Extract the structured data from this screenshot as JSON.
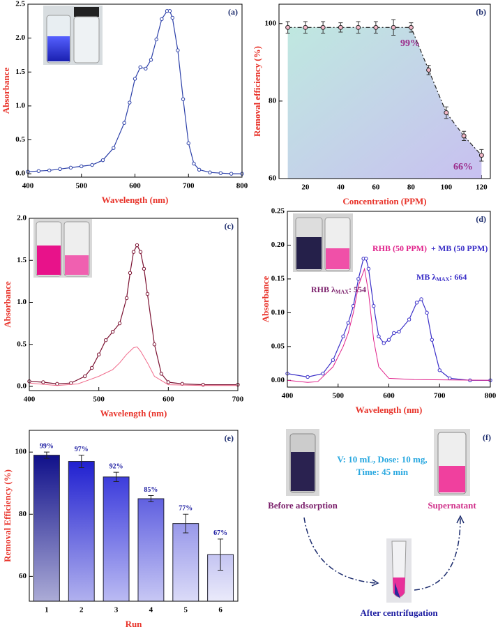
{
  "chart_data": [
    {
      "type": "line",
      "label": "(a)",
      "x_label": "Wavelength (nm)",
      "y_label": "Absorbance",
      "xlim": [
        400,
        800
      ],
      "xticks": [
        400,
        500,
        600,
        700,
        800
      ],
      "ylim": [
        -0.05,
        2.5
      ],
      "yticks": [
        {
          "value": 0,
          "label": "0.0"
        },
        0.5,
        {
          "value": 1,
          "label": "1.0"
        },
        1.5,
        {
          "value": 2,
          "label": "2.0"
        },
        2.5
      ],
      "series": [
        {
          "color": "#2b3fa8",
          "marker": true,
          "x": [
            400,
            420,
            440,
            460,
            480,
            500,
            520,
            540,
            560,
            580,
            590,
            600,
            610,
            620,
            630,
            640,
            650,
            660,
            665,
            670,
            680,
            690,
            700,
            710,
            720,
            740,
            760,
            780,
            800
          ],
          "values": [
            0.03,
            0.04,
            0.05,
            0.07,
            0.09,
            0.11,
            0.13,
            0.2,
            0.38,
            0.75,
            1.05,
            1.4,
            1.57,
            1.55,
            1.68,
            1.98,
            2.28,
            2.4,
            2.4,
            2.3,
            1.82,
            1.1,
            0.45,
            0.15,
            0.06,
            0.02,
            0.01,
            0,
            0
          ]
        }
      ]
    },
    {
      "type": "line",
      "label": "(b)",
      "x_label": "Concentration (PPM)",
      "y_label": "Removal efficiency (%)",
      "xlim": [
        5,
        125
      ],
      "xticks": [
        20,
        40,
        60,
        80,
        100,
        120
      ],
      "ylim": [
        60,
        105
      ],
      "yticks": [
        60,
        80,
        100
      ],
      "annotations": [
        "99%",
        "66%"
      ],
      "series": [
        {
          "color": "#222222",
          "marker": true,
          "dashed": true,
          "area": true,
          "x": [
            10,
            20,
            30,
            40,
            50,
            60,
            70,
            80,
            90,
            100,
            110,
            120
          ],
          "values": [
            99,
            99,
            99,
            99,
            99,
            99,
            99,
            99,
            88,
            77,
            71,
            66
          ],
          "errors": [
            1.5,
            1.5,
            1.5,
            1.2,
            1.5,
            1.5,
            2,
            1.2,
            1.2,
            1.5,
            1.2,
            1.5
          ]
        }
      ]
    },
    {
      "type": "line",
      "label": "(c)",
      "x_label": "Wavelength (nm)",
      "y_label": "Absorbance",
      "xlim": [
        400,
        700
      ],
      "xticks": [
        400,
        500,
        600,
        700
      ],
      "ylim": [
        -0.05,
        2.0
      ],
      "yticks": [
        {
          "value": 0,
          "label": "0.0"
        },
        0.5,
        {
          "value": 1,
          "label": "1.0"
        },
        1.5,
        {
          "value": 2,
          "label": "2.0"
        }
      ],
      "series": [
        {
          "color": "#7a1030",
          "marker": true,
          "x": [
            400,
            420,
            440,
            460,
            480,
            490,
            500,
            510,
            520,
            530,
            540,
            545,
            550,
            555,
            560,
            565,
            570,
            580,
            590,
            600,
            620,
            650,
            700
          ],
          "values": [
            0.06,
            0.05,
            0.03,
            0.04,
            0.12,
            0.22,
            0.38,
            0.55,
            0.65,
            0.75,
            1.05,
            1.35,
            1.6,
            1.68,
            1.6,
            1.4,
            1.1,
            0.5,
            0.15,
            0.05,
            0.03,
            0.02,
            0.02
          ]
        },
        {
          "color": "#f06a8a",
          "marker": false,
          "x": [
            400,
            440,
            470,
            500,
            520,
            530,
            540,
            550,
            555,
            560,
            570,
            580,
            600,
            650,
            700
          ],
          "values": [
            0.04,
            0.01,
            0.03,
            0.12,
            0.2,
            0.28,
            0.38,
            0.46,
            0.47,
            0.42,
            0.28,
            0.12,
            0.02,
            0.01,
            0.01
          ]
        }
      ]
    },
    {
      "type": "line",
      "label": "(d)",
      "x_label": "Wavelength (nm)",
      "y_label": "Absorbance",
      "xlim": [
        400,
        800
      ],
      "xticks": [
        400,
        500,
        600,
        700,
        800
      ],
      "ylim": [
        -0.01,
        0.25
      ],
      "yticks": [
        {
          "value": 0,
          "label": "0.00"
        },
        0.05,
        {
          "value": 0.1,
          "label": "0.10"
        },
        0.15,
        {
          "value": 0.2,
          "label": "0.20"
        },
        0.25
      ],
      "annotations": [
        "RHB (50 PPM)",
        "+",
        "MB (50 PPM)",
        [
          "RHB λ",
          "MAX",
          ": 554"
        ],
        [
          "MB λ",
          "MAX",
          ": 664"
        ]
      ],
      "series": [
        {
          "color": "#3a2fc8",
          "marker": true,
          "x": [
            400,
            440,
            470,
            490,
            510,
            520,
            530,
            540,
            550,
            555,
            560,
            570,
            580,
            590,
            600,
            610,
            620,
            640,
            655,
            664,
            675,
            685,
            700,
            720,
            760,
            800
          ],
          "values": [
            0.01,
            0.005,
            0.01,
            0.03,
            0.065,
            0.085,
            0.11,
            0.15,
            0.18,
            0.18,
            0.165,
            0.11,
            0.065,
            0.055,
            0.06,
            0.07,
            0.072,
            0.09,
            0.115,
            0.12,
            0.1,
            0.06,
            0.015,
            0.003,
            0,
            0
          ]
        },
        {
          "color": "#e0208a",
          "marker": false,
          "x": [
            400,
            440,
            460,
            490,
            510,
            520,
            530,
            540,
            552,
            560,
            570,
            580,
            600,
            650,
            800
          ],
          "values": [
            0,
            -0.003,
            -0.002,
            0.02,
            0.05,
            0.07,
            0.1,
            0.14,
            0.165,
            0.13,
            0.06,
            0.02,
            0.003,
            0.001,
            0
          ]
        }
      ]
    },
    {
      "type": "bar",
      "label": "(e)",
      "x_label": "Run",
      "y_label": "Removal Efficiency (%)",
      "categories": [
        "1",
        "2",
        "3",
        "4",
        "5",
        "6"
      ],
      "values": [
        99,
        97,
        92,
        85,
        77,
        67
      ],
      "errors": [
        1,
        2,
        1.5,
        1,
        3,
        5
      ],
      "value_labels": [
        "99%",
        "97%",
        "92%",
        "85%",
        "77%",
        "67%"
      ],
      "colors": [
        "#10108a",
        "#2020d0",
        "#3c3cdc",
        "#6060e0",
        "#9898ea",
        "#c4c4f2"
      ],
      "ylim": [
        52,
        107
      ],
      "yticks": [
        60,
        80,
        100
      ]
    }
  ],
  "diagram": {
    "label": "(f)",
    "conditions": [
      "V: 10 mL, Dose: 10 mg,",
      "Time: 45 min"
    ],
    "steps": [
      "Before adsorption",
      "After centrifugation",
      "Supernatant"
    ]
  }
}
